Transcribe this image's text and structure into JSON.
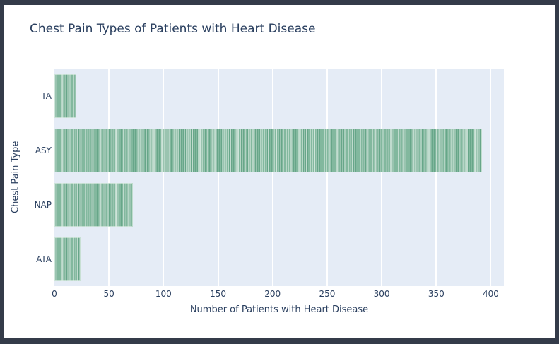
{
  "title": "Chest Pain Types of Patients with Heart Disease",
  "chart_data": {
    "type": "bar",
    "orientation": "horizontal",
    "title": "Chest Pain Types of Patients with Heart Disease",
    "xlabel": "Number of Patients with Heart Disease",
    "ylabel": "Chest Pain Type",
    "categories": [
      "TA",
      "ASY",
      "NAP",
      "ATA"
    ],
    "values": [
      20,
      392,
      72,
      24
    ],
    "xticks": [
      0,
      50,
      100,
      150,
      200,
      250,
      300,
      350,
      400
    ],
    "xlim": [
      0,
      412
    ],
    "grid": true,
    "legend_position": "none",
    "bar_style": "unit-striped",
    "colors": {
      "bar_stripe_dark": "#67a689",
      "bar_stripe_light": "#9ecab4",
      "bar_stripe_pale": "#cde3d8",
      "plot_background": "#e5ecf6",
      "gridline": "#ffffff",
      "text": "#2a3f5f",
      "frame": "#343b49",
      "card": "#ffffff"
    }
  }
}
